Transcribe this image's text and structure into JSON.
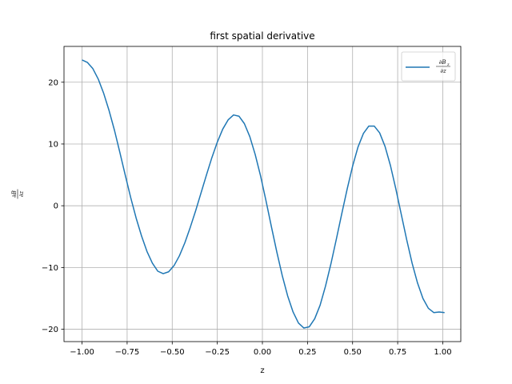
{
  "chart_data": {
    "type": "line",
    "title": "first spatial derivative",
    "xlabel": "z",
    "ylabel": {
      "numerator": "∂B",
      "denominator": "∂z"
    },
    "xlim": [
      -1.1,
      1.1
    ],
    "ylim": [
      -22,
      25.8
    ],
    "xticks": [
      -1.0,
      -0.75,
      -0.5,
      -0.25,
      0.0,
      0.25,
      0.5,
      0.75,
      1.0
    ],
    "xtick_labels": [
      "−1.00",
      "−0.75",
      "−0.50",
      "−0.25",
      "0.00",
      "0.25",
      "0.50",
      "0.75",
      "1.00"
    ],
    "yticks": [
      -20,
      -10,
      0,
      10,
      20
    ],
    "ytick_labels": [
      "−20",
      "−10",
      "0",
      "10",
      "20"
    ],
    "grid": true,
    "legend_position": "upper right",
    "series": [
      {
        "name": {
          "numerator": "∂B",
          "subscript": "z",
          "denominator": "∂z"
        },
        "color": "#1f77b4",
        "x": [
          -1.0,
          -0.97,
          -0.94,
          -0.91,
          -0.88,
          -0.85,
          -0.82,
          -0.79,
          -0.76,
          -0.73,
          -0.7,
          -0.67,
          -0.64,
          -0.61,
          -0.58,
          -0.55,
          -0.52,
          -0.49,
          -0.46,
          -0.43,
          -0.4,
          -0.37,
          -0.34,
          -0.31,
          -0.28,
          -0.25,
          -0.22,
          -0.19,
          -0.16,
          -0.13,
          -0.1,
          -0.07,
          -0.04,
          -0.01,
          0.02,
          0.05,
          0.08,
          0.11,
          0.14,
          0.17,
          0.2,
          0.23,
          0.26,
          0.29,
          0.32,
          0.35,
          0.38,
          0.41,
          0.44,
          0.47,
          0.5,
          0.53,
          0.56,
          0.59,
          0.62,
          0.65,
          0.68,
          0.71,
          0.74,
          0.77,
          0.8,
          0.83,
          0.86,
          0.89,
          0.92,
          0.95,
          0.98,
          1.01
        ],
        "values": [
          23.6,
          23.2,
          22.2,
          20.5,
          18.2,
          15.4,
          12.2,
          8.6,
          4.9,
          1.3,
          -2.0,
          -4.9,
          -7.4,
          -9.3,
          -10.6,
          -11.0,
          -10.7,
          -9.7,
          -8.1,
          -6.0,
          -3.5,
          -0.8,
          2.1,
          5.0,
          7.8,
          10.3,
          12.4,
          13.9,
          14.7,
          14.5,
          13.3,
          11.2,
          8.3,
          4.8,
          0.8,
          -3.4,
          -7.5,
          -11.3,
          -14.6,
          -17.2,
          -19.0,
          -19.8,
          -19.6,
          -18.3,
          -16.1,
          -13.0,
          -9.4,
          -5.4,
          -1.3,
          2.7,
          6.4,
          9.5,
          11.7,
          12.9,
          12.9,
          11.8,
          9.6,
          6.5,
          2.7,
          -1.4,
          -5.5,
          -9.3,
          -12.5,
          -15.0,
          -16.6,
          -17.3,
          -17.2,
          -17.3
        ]
      }
    ]
  }
}
